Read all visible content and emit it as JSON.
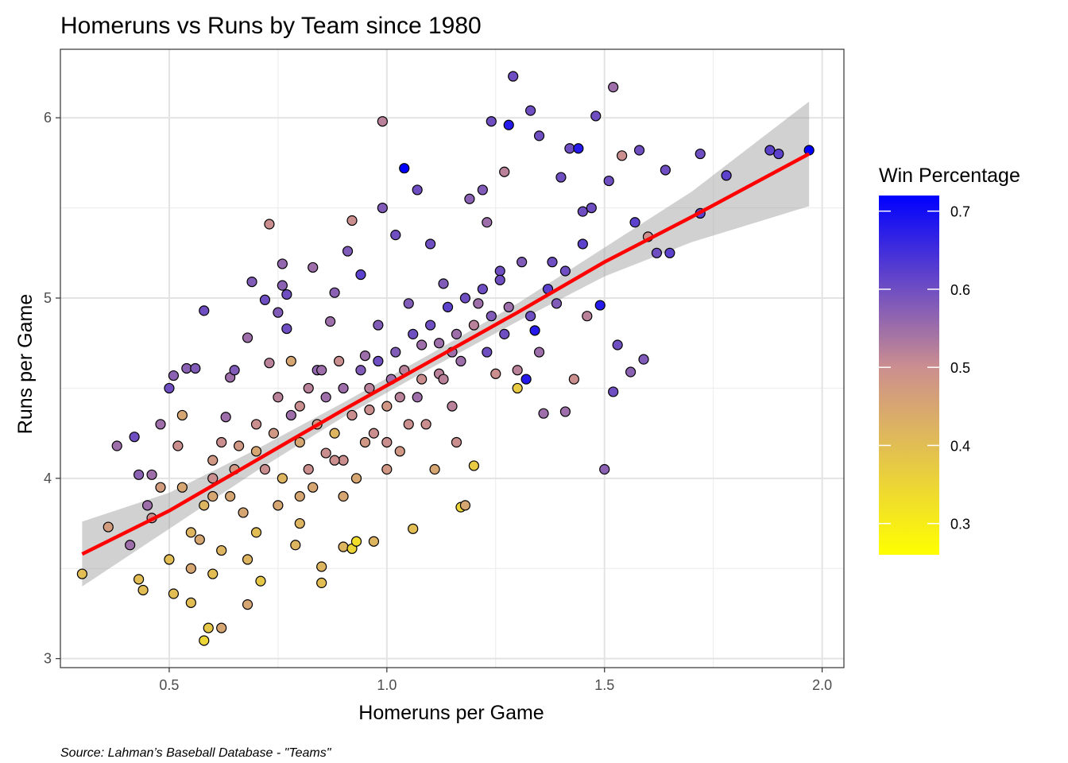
{
  "chart_data": {
    "type": "scatter",
    "title": "Homeruns vs Runs by Team since 1980",
    "xlabel": "Homeruns per Game",
    "ylabel": "Runs per Game",
    "caption": "Source: Lahman’s Baseball Database - \"Teams\"",
    "xlim": [
      0.25,
      2.05
    ],
    "ylim": [
      2.95,
      6.38
    ],
    "x_ticks": [
      0.5,
      1.0,
      1.5,
      2.0
    ],
    "x_tick_labels": [
      "0.5",
      "1.0",
      "1.5",
      "2.0"
    ],
    "y_ticks": [
      3,
      4,
      5,
      6
    ],
    "y_tick_labels": [
      "3",
      "4",
      "5",
      "6"
    ],
    "grid": true,
    "legend": {
      "title": "Win Percentage",
      "position": "right",
      "type": "colorbar",
      "range": [
        0.26,
        0.72
      ],
      "ticks": [
        0.3,
        0.4,
        0.5,
        0.6,
        0.7
      ],
      "tick_labels": [
        "0.3",
        "0.4",
        "0.5",
        "0.6",
        "0.7"
      ],
      "colors": {
        "low": "#ffff00",
        "mid": "#cc8f8f",
        "high": "#0000ff"
      }
    },
    "fit_line": {
      "method": "smooth",
      "color": "#ff0000",
      "x": [
        0.3,
        0.5,
        0.7,
        0.9,
        1.1,
        1.3,
        1.5,
        1.7,
        1.97
      ],
      "y": [
        3.58,
        3.82,
        4.1,
        4.38,
        4.65,
        4.92,
        5.2,
        5.45,
        5.8
      ],
      "band_lower": [
        3.4,
        3.72,
        4.04,
        4.34,
        4.61,
        4.87,
        5.12,
        5.31,
        5.51
      ],
      "band_upper": [
        3.76,
        3.92,
        4.16,
        4.42,
        4.69,
        4.97,
        5.28,
        5.59,
        6.09
      ]
    },
    "series": [
      {
        "points": [
          [
            0.3,
            3.47,
            0.4
          ],
          [
            0.36,
            3.73,
            0.47
          ],
          [
            0.38,
            4.18,
            0.55
          ],
          [
            0.41,
            3.63,
            0.55
          ],
          [
            0.42,
            4.23,
            0.6
          ],
          [
            0.43,
            4.02,
            0.57
          ],
          [
            0.43,
            3.44,
            0.4
          ],
          [
            0.44,
            3.38,
            0.4
          ],
          [
            0.45,
            3.85,
            0.55
          ],
          [
            0.46,
            3.78,
            0.5
          ],
          [
            0.46,
            4.02,
            0.55
          ],
          [
            0.48,
            4.3,
            0.55
          ],
          [
            0.5,
            4.5,
            0.6
          ],
          [
            0.51,
            4.57,
            0.57
          ],
          [
            0.5,
            3.55,
            0.4
          ],
          [
            0.51,
            3.36,
            0.4
          ],
          [
            0.53,
            3.95,
            0.45
          ],
          [
            0.53,
            4.35,
            0.45
          ],
          [
            0.54,
            4.61,
            0.57
          ],
          [
            0.56,
            4.61,
            0.58
          ],
          [
            0.55,
            3.5,
            0.45
          ],
          [
            0.55,
            3.31,
            0.4
          ],
          [
            0.57,
            3.66,
            0.45
          ],
          [
            0.58,
            4.93,
            0.6
          ],
          [
            0.58,
            3.1,
            0.35
          ],
          [
            0.59,
            3.17,
            0.38
          ],
          [
            0.6,
            3.47,
            0.4
          ],
          [
            0.62,
            3.17,
            0.45
          ],
          [
            0.6,
            4.0,
            0.5
          ],
          [
            0.62,
            4.2,
            0.5
          ],
          [
            0.63,
            4.34,
            0.55
          ],
          [
            0.64,
            3.9,
            0.45
          ],
          [
            0.64,
            4.56,
            0.55
          ],
          [
            0.65,
            4.6,
            0.58
          ],
          [
            0.66,
            4.18,
            0.48
          ],
          [
            0.67,
            3.81,
            0.45
          ],
          [
            0.68,
            4.78,
            0.55
          ],
          [
            0.68,
            3.3,
            0.45
          ],
          [
            0.69,
            5.09,
            0.58
          ],
          [
            0.7,
            4.3,
            0.5
          ],
          [
            0.71,
            3.43,
            0.38
          ],
          [
            0.72,
            4.99,
            0.6
          ],
          [
            0.73,
            5.41,
            0.5
          ],
          [
            0.73,
            4.64,
            0.52
          ],
          [
            0.75,
            4.92,
            0.58
          ],
          [
            0.76,
            5.19,
            0.56
          ],
          [
            0.76,
            5.07,
            0.57
          ],
          [
            0.77,
            5.02,
            0.6
          ],
          [
            0.77,
            4.83,
            0.6
          ],
          [
            0.78,
            4.65,
            0.45
          ],
          [
            0.79,
            3.63,
            0.42
          ],
          [
            0.8,
            4.4,
            0.5
          ],
          [
            0.8,
            3.9,
            0.45
          ],
          [
            0.82,
            4.5,
            0.52
          ],
          [
            0.83,
            5.17,
            0.55
          ],
          [
            0.84,
            4.6,
            0.56
          ],
          [
            0.85,
            3.51,
            0.42
          ],
          [
            0.85,
            3.42,
            0.4
          ],
          [
            0.86,
            4.14,
            0.5
          ],
          [
            0.87,
            4.87,
            0.55
          ],
          [
            0.88,
            5.03,
            0.57
          ],
          [
            0.89,
            4.65,
            0.5
          ],
          [
            0.9,
            3.62,
            0.42
          ],
          [
            0.9,
            4.1,
            0.5
          ],
          [
            0.91,
            5.26,
            0.58
          ],
          [
            0.92,
            5.43,
            0.5
          ],
          [
            0.92,
            3.61,
            0.35
          ],
          [
            0.93,
            3.65,
            0.33
          ],
          [
            0.94,
            5.13,
            0.62
          ],
          [
            0.95,
            4.68,
            0.55
          ],
          [
            0.96,
            4.38,
            0.5
          ],
          [
            0.97,
            3.65,
            0.42
          ],
          [
            0.98,
            4.85,
            0.58
          ],
          [
            0.99,
            5.5,
            0.58
          ],
          [
            0.99,
            5.98,
            0.52
          ],
          [
            1.0,
            4.2,
            0.5
          ],
          [
            1.01,
            4.55,
            0.55
          ],
          [
            1.02,
            5.35,
            0.6
          ],
          [
            1.03,
            4.45,
            0.52
          ],
          [
            1.04,
            5.72,
            0.72
          ],
          [
            1.05,
            4.97,
            0.58
          ],
          [
            1.06,
            3.72,
            0.4
          ],
          [
            1.07,
            5.6,
            0.6
          ],
          [
            1.08,
            4.74,
            0.55
          ],
          [
            1.09,
            4.3,
            0.5
          ],
          [
            1.1,
            5.3,
            0.6
          ],
          [
            1.11,
            4.05,
            0.45
          ],
          [
            1.12,
            4.58,
            0.52
          ],
          [
            1.13,
            5.08,
            0.58
          ],
          [
            1.15,
            4.7,
            0.55
          ],
          [
            1.16,
            4.2,
            0.5
          ],
          [
            1.17,
            3.84,
            0.35
          ],
          [
            1.18,
            3.85,
            0.45
          ],
          [
            1.19,
            5.55,
            0.57
          ],
          [
            1.2,
            4.07,
            0.37
          ],
          [
            1.21,
            4.97,
            0.55
          ],
          [
            1.22,
            5.6,
            0.58
          ],
          [
            1.23,
            5.42,
            0.55
          ],
          [
            1.24,
            5.98,
            0.6
          ],
          [
            1.25,
            4.58,
            0.5
          ],
          [
            1.26,
            5.15,
            0.6
          ],
          [
            1.27,
            5.7,
            0.52
          ],
          [
            1.28,
            5.96,
            0.68
          ],
          [
            1.29,
            6.23,
            0.6
          ],
          [
            1.3,
            4.5,
            0.37
          ],
          [
            1.31,
            5.2,
            0.58
          ],
          [
            1.32,
            4.55,
            0.68
          ],
          [
            1.33,
            6.04,
            0.6
          ],
          [
            1.34,
            4.82,
            0.68
          ],
          [
            1.35,
            5.9,
            0.6
          ],
          [
            1.36,
            4.36,
            0.55
          ],
          [
            1.38,
            5.2,
            0.6
          ],
          [
            1.39,
            4.97,
            0.58
          ],
          [
            1.4,
            5.67,
            0.6
          ],
          [
            1.41,
            4.37,
            0.55
          ],
          [
            1.42,
            5.83,
            0.6
          ],
          [
            1.43,
            4.55,
            0.5
          ],
          [
            1.44,
            5.83,
            0.68
          ],
          [
            1.45,
            5.48,
            0.6
          ],
          [
            1.46,
            4.9,
            0.52
          ],
          [
            1.47,
            5.5,
            0.6
          ],
          [
            1.48,
            6.01,
            0.6
          ],
          [
            1.49,
            4.96,
            0.68
          ],
          [
            1.5,
            4.05,
            0.57
          ],
          [
            1.51,
            5.65,
            0.6
          ],
          [
            1.52,
            4.48,
            0.6
          ],
          [
            1.52,
            6.17,
            0.55
          ],
          [
            1.53,
            4.74,
            0.6
          ],
          [
            1.54,
            5.79,
            0.5
          ],
          [
            1.56,
            4.59,
            0.57
          ],
          [
            1.57,
            5.42,
            0.62
          ],
          [
            1.58,
            5.82,
            0.6
          ],
          [
            1.59,
            4.66,
            0.58
          ],
          [
            1.6,
            5.34,
            0.5
          ],
          [
            1.62,
            5.25,
            0.6
          ],
          [
            1.64,
            5.71,
            0.6
          ],
          [
            1.65,
            5.25,
            0.62
          ],
          [
            1.72,
            5.47,
            0.62
          ],
          [
            1.72,
            5.8,
            0.6
          ],
          [
            1.78,
            5.68,
            0.62
          ],
          [
            1.88,
            5.82,
            0.62
          ],
          [
            1.9,
            5.8,
            0.62
          ],
          [
            1.97,
            5.82,
            0.72
          ],
          [
            0.7,
            4.15,
            0.45
          ],
          [
            0.72,
            4.05,
            0.5
          ],
          [
            0.74,
            4.25,
            0.48
          ],
          [
            0.76,
            4.0,
            0.42
          ],
          [
            0.78,
            4.35,
            0.55
          ],
          [
            0.8,
            4.2,
            0.45
          ],
          [
            0.82,
            4.05,
            0.5
          ],
          [
            0.84,
            4.3,
            0.48
          ],
          [
            0.86,
            4.45,
            0.55
          ],
          [
            0.88,
            4.25,
            0.42
          ],
          [
            0.9,
            4.5,
            0.55
          ],
          [
            0.92,
            4.35,
            0.5
          ],
          [
            0.94,
            4.6,
            0.58
          ],
          [
            0.96,
            4.5,
            0.52
          ],
          [
            0.98,
            4.65,
            0.6
          ],
          [
            1.0,
            4.4,
            0.48
          ],
          [
            1.02,
            4.7,
            0.58
          ],
          [
            1.04,
            4.6,
            0.52
          ],
          [
            1.06,
            4.8,
            0.6
          ],
          [
            1.08,
            4.55,
            0.5
          ],
          [
            1.1,
            4.85,
            0.6
          ],
          [
            1.12,
            4.75,
            0.55
          ],
          [
            1.14,
            4.95,
            0.62
          ],
          [
            1.16,
            4.8,
            0.55
          ],
          [
            1.18,
            5.0,
            0.6
          ],
          [
            1.2,
            4.85,
            0.52
          ],
          [
            1.22,
            5.05,
            0.6
          ],
          [
            1.24,
            4.9,
            0.58
          ],
          [
            1.26,
            5.1,
            0.6
          ],
          [
            1.28,
            4.95,
            0.55
          ],
          [
            0.75,
            4.45,
            0.52
          ],
          [
            0.85,
            4.6,
            0.55
          ],
          [
            0.95,
            4.2,
            0.48
          ],
          [
            1.05,
            4.3,
            0.5
          ],
          [
            1.15,
            4.4,
            0.52
          ],
          [
            0.8,
            3.75,
            0.42
          ],
          [
            0.9,
            3.9,
            0.45
          ],
          [
            1.0,
            4.05,
            0.48
          ],
          [
            0.7,
            3.7,
            0.4
          ],
          [
            0.6,
            3.9,
            0.45
          ],
          [
            0.65,
            4.05,
            0.48
          ],
          [
            0.62,
            3.6,
            0.42
          ],
          [
            0.68,
            3.55,
            0.42
          ],
          [
            0.75,
            3.85,
            0.45
          ],
          [
            0.83,
            3.95,
            0.45
          ],
          [
            0.88,
            4.1,
            0.5
          ],
          [
            0.93,
            4.0,
            0.45
          ],
          [
            0.97,
            4.25,
            0.5
          ],
          [
            1.03,
            4.15,
            0.48
          ],
          [
            1.07,
            4.45,
            0.55
          ],
          [
            1.13,
            4.55,
            0.52
          ],
          [
            1.17,
            4.65,
            0.55
          ],
          [
            1.23,
            4.7,
            0.6
          ],
          [
            1.27,
            4.8,
            0.6
          ],
          [
            1.33,
            4.9,
            0.6
          ],
          [
            1.37,
            5.05,
            0.62
          ],
          [
            1.41,
            5.15,
            0.6
          ],
          [
            1.45,
            5.3,
            0.62
          ],
          [
            1.35,
            4.7,
            0.55
          ],
          [
            1.3,
            4.6,
            0.52
          ],
          [
            0.55,
            3.7,
            0.42
          ],
          [
            0.58,
            3.85,
            0.42
          ],
          [
            0.6,
            4.1,
            0.48
          ],
          [
            0.52,
            4.18,
            0.5
          ],
          [
            0.48,
            3.95,
            0.47
          ]
        ]
      }
    ]
  }
}
